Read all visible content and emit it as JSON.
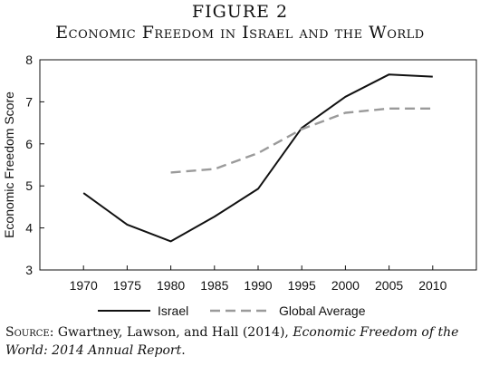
{
  "figure_label": "FIGURE 2",
  "title": "Economic Freedom in Israel and the World",
  "source": {
    "lead": "Source:",
    "text": " Gwartney, Lawson, and Hall (2014), ",
    "publication": "Economic Freedom of the World: 2014 Annual Report",
    "tail": "."
  },
  "chart_data": {
    "type": "line",
    "title": "Economic Freedom in Israel and the World",
    "xlabel": "",
    "ylabel": "Economic Freedom Score",
    "x": [
      1970,
      1975,
      1980,
      1985,
      1990,
      1995,
      2000,
      2005,
      2010
    ],
    "xlim": [
      1965,
      2015
    ],
    "ylim": [
      3,
      8
    ],
    "yticks": [
      3,
      4,
      5,
      6,
      7,
      8
    ],
    "grid": false,
    "legend": "bottom",
    "series": [
      {
        "name": "Israel",
        "style": "solid",
        "color": "#111111",
        "values": [
          4.83,
          4.08,
          3.68,
          4.27,
          4.93,
          6.38,
          7.12,
          7.65,
          7.6
        ]
      },
      {
        "name": "Global Average",
        "style": "dashed",
        "color": "#9a9a9a",
        "values": [
          null,
          null,
          5.32,
          5.4,
          5.78,
          6.35,
          6.74,
          6.84,
          6.84
        ]
      }
    ]
  }
}
